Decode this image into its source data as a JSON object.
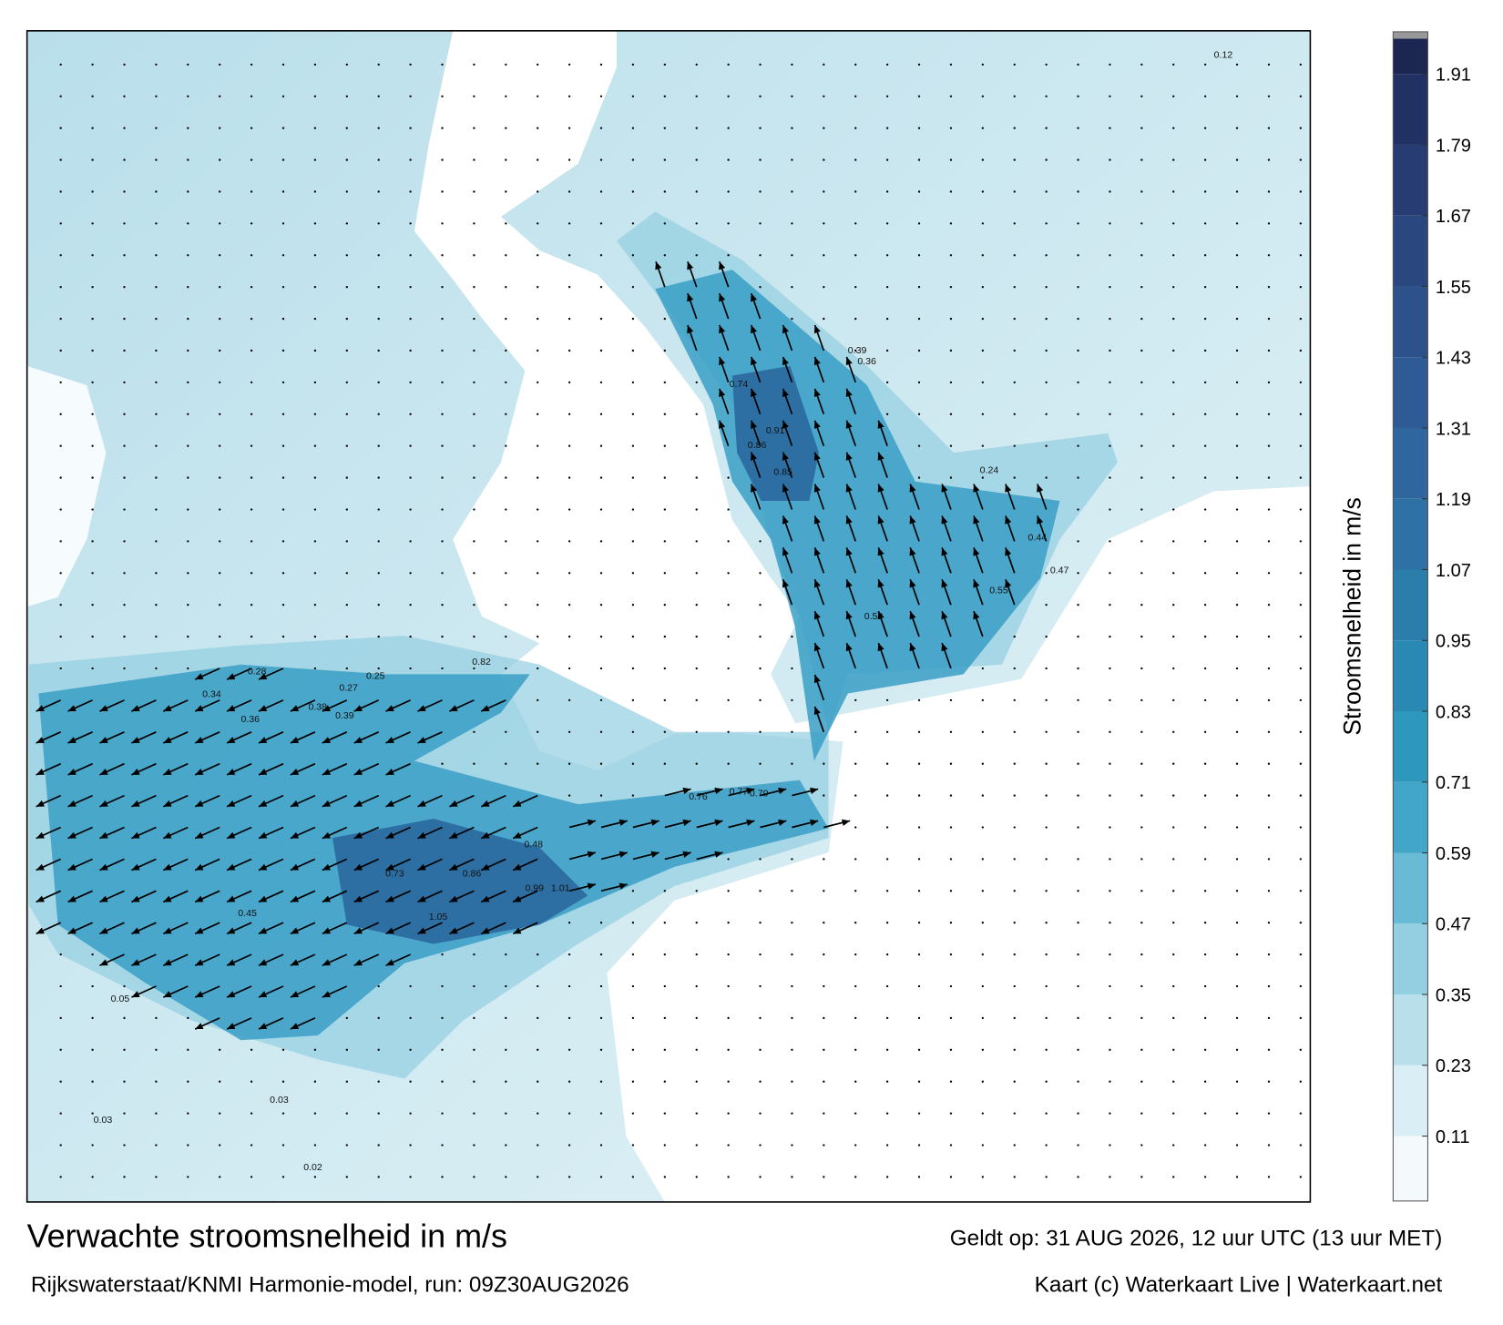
{
  "title": "Verwachte stroomsnelheid in m/s",
  "subtitle": "Rijkswaterstaat/KNMI Harmonie-model, run: 09Z30AUG2026",
  "valid_time": "Geldt op: 31 AUG 2026, 12 uur UTC (13 uur MET)",
  "credit": "Kaart (c) Waterkaart Live | Waterkaart.net",
  "colorbar": {
    "label": "Stroomsnelheid in m/s",
    "range": [
      0,
      1.97
    ],
    "ticks": [
      0.11,
      0.23,
      0.35,
      0.47,
      0.59,
      0.71,
      0.83,
      0.95,
      1.07,
      1.19,
      1.31,
      1.43,
      1.55,
      1.67,
      1.79,
      1.91
    ],
    "colors": [
      "#f4fafc",
      "#daeff5",
      "#b9dfeb",
      "#93cfe1",
      "#68bad5",
      "#42a6c8",
      "#2e97bc",
      "#2a89b2",
      "#2b7daa",
      "#2e71a4",
      "#30669e",
      "#2e5b95",
      "#2c518b",
      "#2a477f",
      "#263c72",
      "#213163",
      "#1b2750"
    ]
  },
  "map_labels": [
    "0.86",
    "0.99",
    "1.01",
    "1.05",
    "0.73",
    "0.77",
    "0.79",
    "0.76",
    "0.74",
    "0.91",
    "0.85",
    "0.86",
    "0.59",
    "0.55",
    "0.48",
    "0.45",
    "0.36",
    "0.34",
    "0.39",
    "0.38",
    "0.28",
    "0.27",
    "0.25",
    "0.82",
    "0.44",
    "0.47",
    "0.02",
    "0.03",
    "0.03",
    "0.05",
    "0.24",
    "0.39",
    "0.36",
    "0.12"
  ]
}
